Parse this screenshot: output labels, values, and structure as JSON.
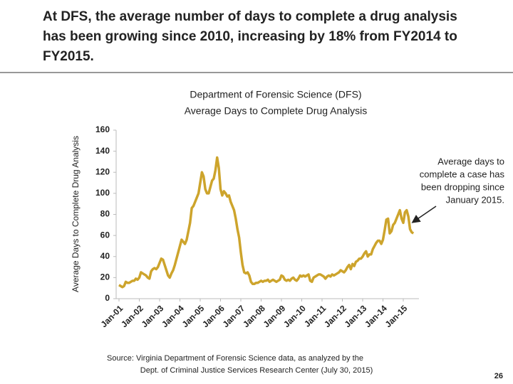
{
  "headline": [
    "At DFS, the average number of days to complete a drug analysis",
    "has been growing since 2010, increasing by 18% from FY2014 to",
    "FY2015."
  ],
  "chart_data": {
    "type": "line",
    "title": [
      "Department of Forensic Science (DFS)",
      "Average Days to Complete Drug Analysis"
    ],
    "y_label": "Average Days to Complete Drug Analysis",
    "categories": [
      "Jan-01",
      null,
      null,
      null,
      null,
      null,
      null,
      null,
      null,
      null,
      null,
      null,
      "Jan-02",
      null,
      null,
      null,
      null,
      null,
      null,
      null,
      null,
      null,
      null,
      null,
      "Jan-03",
      null,
      null,
      null,
      null,
      null,
      null,
      null,
      null,
      null,
      null,
      null,
      "Jan-04",
      null,
      null,
      null,
      null,
      null,
      null,
      null,
      null,
      null,
      null,
      null,
      "Jan-05",
      null,
      null,
      null,
      null,
      null,
      null,
      null,
      null,
      null,
      null,
      null,
      "Jan-06",
      null,
      null,
      null,
      null,
      null,
      null,
      null,
      null,
      null,
      null,
      null,
      "Jan-07",
      null,
      null,
      null,
      null,
      null,
      null,
      null,
      null,
      null,
      null,
      null,
      "Jan-08",
      null,
      null,
      null,
      null,
      null,
      null,
      null,
      null,
      null,
      null,
      null,
      "Jan-09",
      null,
      null,
      null,
      null,
      null,
      null,
      null,
      null,
      null,
      null,
      null,
      "Jan-10",
      null,
      null,
      null,
      null,
      null,
      null,
      null,
      null,
      null,
      null,
      null,
      "Jan-11",
      null,
      null,
      null,
      null,
      null,
      null,
      null,
      null,
      null,
      null,
      null,
      "Jan-12",
      null,
      null,
      null,
      null,
      null,
      null,
      null,
      null,
      null,
      null,
      null,
      "Jan-13",
      null,
      null,
      null,
      null,
      null,
      null,
      null,
      null,
      null,
      null,
      null,
      "Jan-14",
      null,
      null,
      null,
      null,
      null,
      null,
      null,
      null,
      null,
      null,
      null,
      "Jan-15",
      null,
      null,
      null,
      null,
      null,
      null
    ],
    "series": [
      {
        "name": "Average Days to Complete Drug Analysis",
        "color": "#cda42c",
        "values": [
          13,
          12,
          11,
          12,
          16,
          15,
          15,
          16,
          17,
          17,
          19,
          18,
          20,
          25,
          24,
          23,
          22,
          20,
          19,
          26,
          28,
          29,
          28,
          30,
          34,
          38,
          37,
          32,
          27,
          22,
          20,
          24,
          27,
          32,
          38,
          44,
          50,
          56,
          54,
          52,
          56,
          64,
          72,
          86,
          88,
          92,
          96,
          100,
          110,
          120,
          116,
          104,
          100,
          100,
          106,
          112,
          114,
          122,
          134,
          124,
          104,
          98,
          102,
          100,
          97,
          98,
          92,
          88,
          84,
          76,
          66,
          58,
          44,
          32,
          25,
          24,
          25,
          22,
          16,
          14,
          14,
          15,
          15,
          16,
          17,
          16,
          17,
          17,
          18,
          16,
          17,
          18,
          17,
          16,
          17,
          18,
          22,
          21,
          18,
          17,
          18,
          17,
          19,
          20,
          18,
          17,
          19,
          22,
          21,
          22,
          21,
          22,
          23,
          17,
          16,
          20,
          21,
          22,
          23,
          23,
          22,
          21,
          19,
          21,
          22,
          21,
          23,
          22,
          23,
          24,
          25,
          27,
          26,
          25,
          27,
          30,
          32,
          28,
          33,
          31,
          35,
          36,
          38,
          38,
          40,
          43,
          45,
          40,
          42,
          42,
          47,
          50,
          53,
          55,
          55,
          52,
          56,
          65,
          75,
          76,
          62,
          64,
          70,
          72,
          76,
          80,
          84,
          76,
          72,
          82,
          84,
          78,
          66,
          63,
          62
        ]
      }
    ],
    "ylim": [
      0,
      160
    ],
    "yticks": [
      0,
      20,
      40,
      60,
      80,
      100,
      120,
      140,
      160
    ],
    "annotation": [
      "Average days to",
      "complete a case has",
      "been dropping since",
      "January 2015."
    ]
  },
  "source": [
    "Source:  Virginia Department of Forensic Science  data, as analyzed by the",
    "Dept. of Criminal Justice Services Research Center (July 30, 2015)"
  ],
  "page_number": "26"
}
